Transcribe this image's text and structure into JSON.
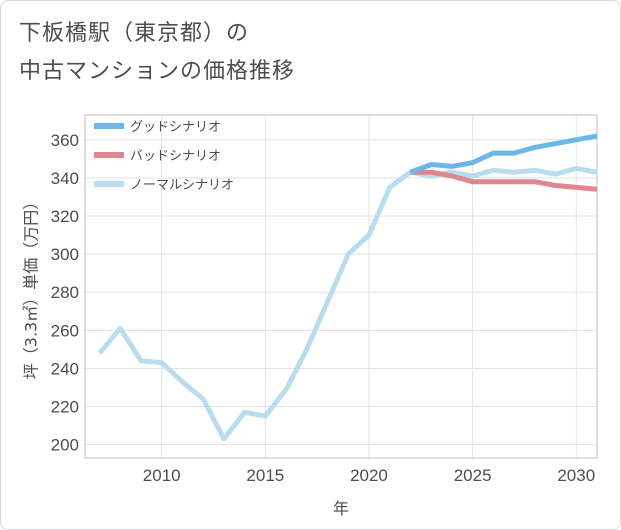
{
  "title": {
    "line1": "下板橋駅（東京都）の",
    "line2": "中古マンションの価格推移"
  },
  "chart_data": {
    "type": "line",
    "xlabel": "年",
    "ylabel": "坪（3.3㎡）単価（万円）",
    "xlim": [
      2006.3,
      2031
    ],
    "ylim": [
      193,
      373
    ],
    "xticks": [
      2010,
      2015,
      2020,
      2025,
      2030
    ],
    "yticks": [
      200,
      220,
      240,
      260,
      280,
      300,
      320,
      340,
      360
    ],
    "grid": true,
    "legend_position": "top-left",
    "series": [
      {
        "name": "グッドシナリオ",
        "color": "#6cb7ea",
        "x": [
          2022,
          2023,
          2024,
          2025,
          2026,
          2027,
          2028,
          2029,
          2030,
          2031
        ],
        "y": [
          343,
          347,
          346,
          348,
          353,
          353,
          356,
          358,
          360,
          362
        ]
      },
      {
        "name": "バッドシナリオ",
        "color": "#e0868e",
        "x": [
          2022,
          2023,
          2024,
          2025,
          2026,
          2027,
          2028,
          2029,
          2030,
          2031
        ],
        "y": [
          343,
          343,
          341,
          338,
          338,
          338,
          338,
          336,
          335,
          334
        ]
      },
      {
        "name": "ノーマルシナリオ",
        "color": "#b9dded",
        "x": [
          2007,
          2008,
          2009,
          2010,
          2011,
          2012,
          2013,
          2014,
          2015,
          2016,
          2017,
          2018,
          2019,
          2020,
          2021,
          2022,
          2023,
          2024,
          2025,
          2026,
          2027,
          2028,
          2029,
          2030,
          2031
        ],
        "y": [
          248,
          261,
          244,
          243,
          233,
          224,
          203,
          217,
          215,
          229,
          250,
          275,
          300,
          310,
          335,
          343,
          341,
          343,
          341,
          344,
          343,
          344,
          342,
          345,
          343
        ]
      }
    ]
  }
}
